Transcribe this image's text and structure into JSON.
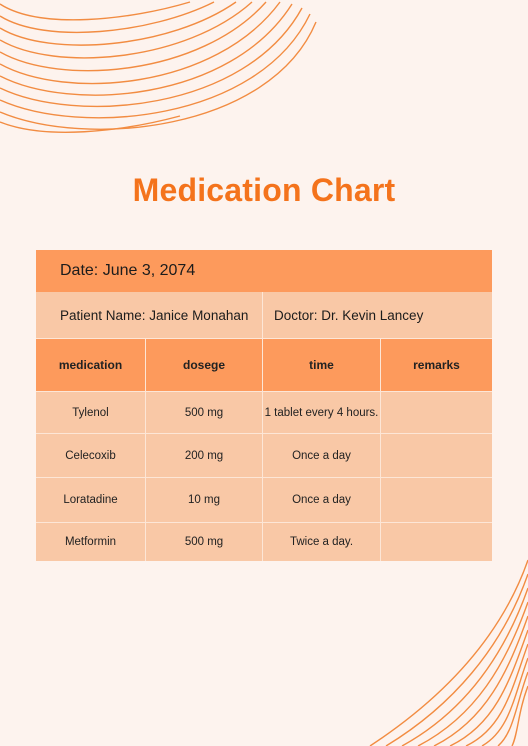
{
  "document": {
    "title": "Medication Chart",
    "date_line": "Date: June 3, 2074",
    "patient_line": "Patient Name: Janice Monahan",
    "doctor_line": "Doctor: Dr. Kevin Lancey"
  },
  "table": {
    "headers": [
      "medication",
      "dosege",
      "time",
      "remarks"
    ],
    "rows": [
      [
        "Tylenol",
        "500 mg",
        "1 tablet every 4 hours.",
        ""
      ],
      [
        "Celecoxib",
        "200 mg",
        "Once a day",
        ""
      ],
      [
        "Loratadine",
        "10 mg",
        "Once a day",
        ""
      ],
      [
        "Metformin",
        "500 mg",
        "Twice a day.",
        ""
      ]
    ]
  },
  "colors": {
    "background": "#fdf3ee",
    "accent": "#f4731c",
    "header_fill": "#fd9a5c",
    "row_fill": "#f9c8a6",
    "wave_lines": "#f28c42"
  }
}
